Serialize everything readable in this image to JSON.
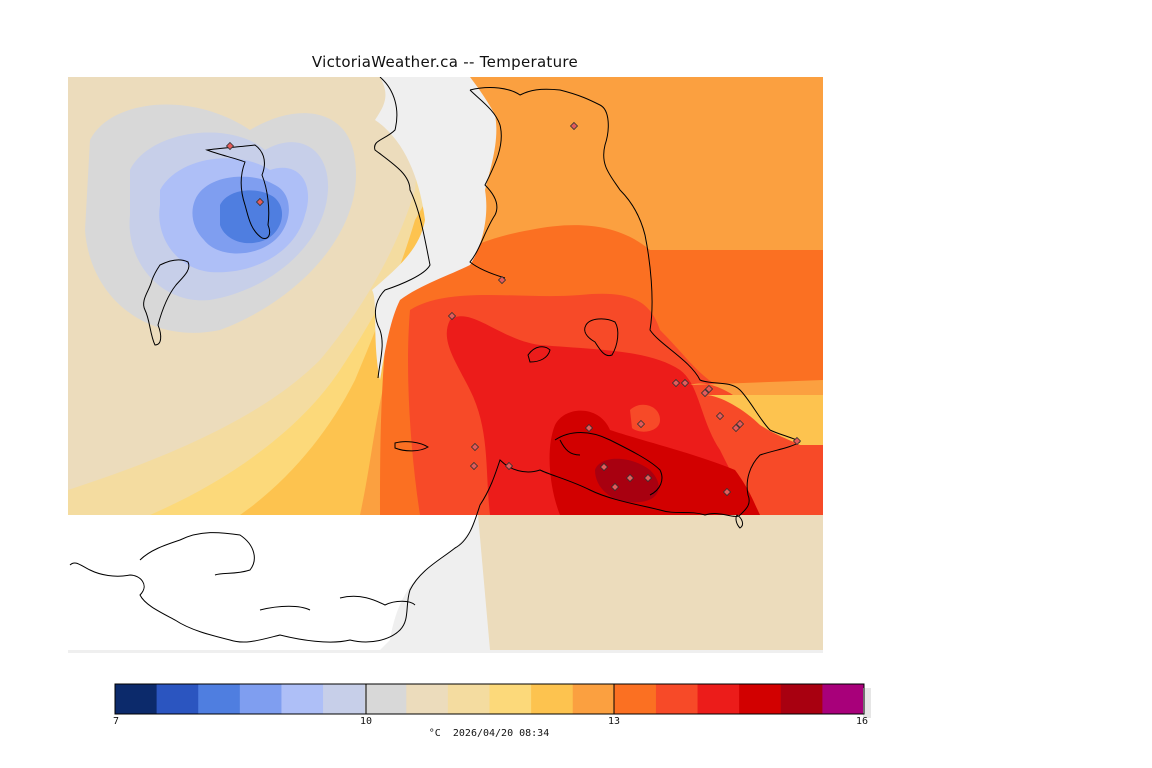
{
  "title": "VictoriaWeather.ca -- Temperature",
  "legend": {
    "min": 7,
    "max": 16,
    "tick_labels": [
      "7",
      "10",
      "13",
      "16"
    ],
    "colors": [
      "#0c2a6b",
      "#2b55c0",
      "#4f7ee0",
      "#7f9ef0",
      "#aebff7",
      "#c7cfe9",
      "#d8d8d8",
      "#ecdcbc",
      "#f4dca0",
      "#fcd97a",
      "#fdc34f",
      "#fba040",
      "#fb7022",
      "#f74a28",
      "#ec1c1a",
      "#d20000",
      "#a80010",
      "#a8007a"
    ],
    "unit": "°C",
    "timestamp": "2026/04/20 08:34"
  },
  "stations": {
    "count": 23
  }
}
